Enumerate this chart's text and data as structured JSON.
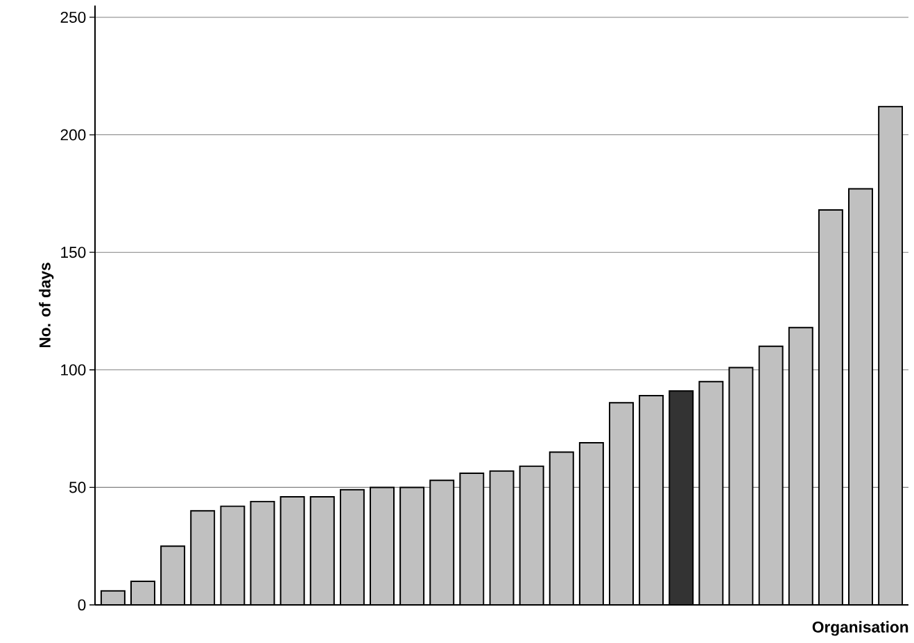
{
  "chart_data": {
    "type": "bar",
    "xlabel": "Organisation",
    "ylabel": "No. of days",
    "categories": [
      null,
      null,
      null,
      null,
      null,
      null,
      null,
      null,
      null,
      null,
      null,
      null,
      null,
      null,
      null,
      null,
      null,
      null,
      null,
      null,
      null,
      null,
      null,
      null,
      null,
      null,
      null
    ],
    "values": [
      6,
      10,
      25,
      40,
      42,
      44,
      46,
      46,
      49,
      50,
      50,
      53,
      56,
      57,
      59,
      65,
      69,
      86,
      89,
      91,
      95,
      101,
      110,
      118,
      168,
      177,
      212
    ],
    "colors": [
      "#c0c0c0",
      "#c0c0c0",
      "#c0c0c0",
      "#c0c0c0",
      "#c0c0c0",
      "#c0c0c0",
      "#c0c0c0",
      "#c0c0c0",
      "#c0c0c0",
      "#c0c0c0",
      "#c0c0c0",
      "#c0c0c0",
      "#c0c0c0",
      "#c0c0c0",
      "#c0c0c0",
      "#c0c0c0",
      "#c0c0c0",
      "#c0c0c0",
      "#c0c0c0",
      "#333333",
      "#c0c0c0",
      "#c0c0c0",
      "#c0c0c0",
      "#c0c0c0",
      "#c0c0c0",
      "#c0c0c0",
      "#c0c0c0"
    ],
    "ylim": [
      0,
      255
    ],
    "yticks": [
      0,
      50,
      100,
      150,
      200,
      250
    ],
    "grid": "y",
    "tick_labels": "y"
  }
}
